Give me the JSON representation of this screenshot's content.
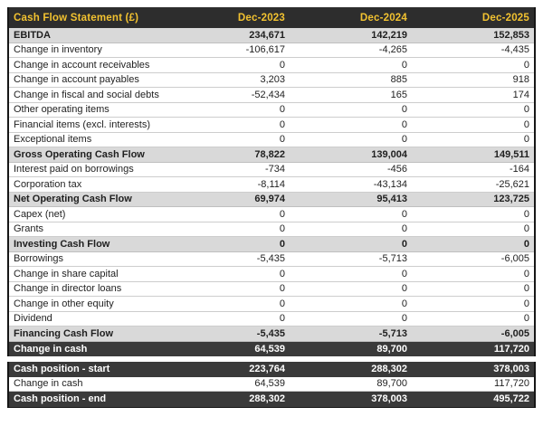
{
  "title": "Cash Flow Statement (£)",
  "columns": [
    "Dec-2023",
    "Dec-2024",
    "Dec-2025"
  ],
  "colors": {
    "header_bg": "#2d2d2d",
    "header_text": "#f2c230",
    "subtotal_row_bg": "#d9d9d9",
    "dark_row_bg": "#3a3a3a",
    "dark_row_text": "#ffffff",
    "row_border": "#cdcdcd",
    "outer_border": "#161616"
  },
  "table": {
    "rows": [
      {
        "label": "EBITDA",
        "style": "subtotal",
        "values": [
          "234,671",
          "142,219",
          "152,853"
        ]
      },
      {
        "label": "Change in inventory",
        "style": "item",
        "values": [
          "-106,617",
          "-4,265",
          "-4,435"
        ]
      },
      {
        "label": "Change in account receivables",
        "style": "item",
        "values": [
          "0",
          "0",
          "0"
        ]
      },
      {
        "label": "Change in account payables",
        "style": "item",
        "values": [
          "3,203",
          "885",
          "918"
        ]
      },
      {
        "label": "Change in fiscal and social debts",
        "style": "item",
        "values": [
          "-52,434",
          "165",
          "174"
        ]
      },
      {
        "label": "Other operating items",
        "style": "item",
        "values": [
          "0",
          "0",
          "0"
        ]
      },
      {
        "label": "Financial items (excl. interests)",
        "style": "item",
        "values": [
          "0",
          "0",
          "0"
        ]
      },
      {
        "label": "Exceptional items",
        "style": "item",
        "values": [
          "0",
          "0",
          "0"
        ]
      },
      {
        "label": "Gross Operating Cash Flow",
        "style": "subtotal",
        "values": [
          "78,822",
          "139,004",
          "149,511"
        ]
      },
      {
        "label": "Interest paid on borrowings",
        "style": "item",
        "values": [
          "-734",
          "-456",
          "-164"
        ]
      },
      {
        "label": "Corporation tax",
        "style": "item",
        "values": [
          "-8,114",
          "-43,134",
          "-25,621"
        ]
      },
      {
        "label": "Net Operating Cash Flow",
        "style": "subtotal",
        "values": [
          "69,974",
          "95,413",
          "123,725"
        ]
      },
      {
        "label": "Capex (net)",
        "style": "item",
        "values": [
          "0",
          "0",
          "0"
        ]
      },
      {
        "label": "Grants",
        "style": "item",
        "values": [
          "0",
          "0",
          "0"
        ]
      },
      {
        "label": "Investing Cash Flow",
        "style": "subtotal",
        "values": [
          "0",
          "0",
          "0"
        ]
      },
      {
        "label": "Borrowings",
        "style": "item",
        "values": [
          "-5,435",
          "-5,713",
          "-6,005"
        ]
      },
      {
        "label": "Change in share capital",
        "style": "item",
        "values": [
          "0",
          "0",
          "0"
        ]
      },
      {
        "label": "Change in director loans",
        "style": "item",
        "values": [
          "0",
          "0",
          "0"
        ]
      },
      {
        "label": "Change in other equity",
        "style": "item",
        "values": [
          "0",
          "0",
          "0"
        ]
      },
      {
        "label": "Dividend",
        "style": "item",
        "values": [
          "0",
          "0",
          "0"
        ]
      },
      {
        "label": "Financing Cash Flow",
        "style": "subtotal",
        "values": [
          "-5,435",
          "-5,713",
          "-6,005"
        ]
      },
      {
        "label": "Change in cash",
        "style": "dark",
        "values": [
          "64,539",
          "89,700",
          "117,720"
        ]
      }
    ]
  },
  "summary": {
    "rows": [
      {
        "label": "Cash position - start",
        "style": "dark",
        "values": [
          "223,764",
          "288,302",
          "378,003"
        ]
      },
      {
        "label": "Change in cash",
        "style": "item",
        "values": [
          "64,539",
          "89,700",
          "117,720"
        ]
      },
      {
        "label": "Cash position - end",
        "style": "dark",
        "values": [
          "288,302",
          "378,003",
          "495,722"
        ]
      }
    ]
  }
}
